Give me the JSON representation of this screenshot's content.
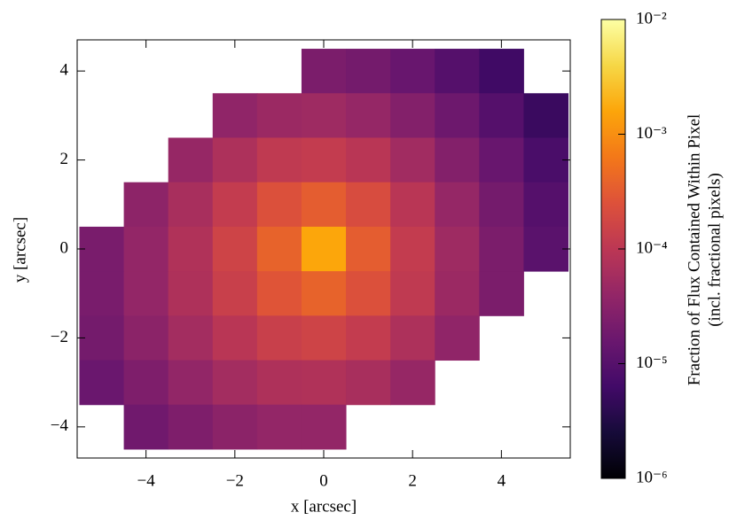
{
  "chart_data": {
    "type": "heatmap",
    "x_label": "x [arcsec]",
    "y_label": "y [arcsec]",
    "colorbar_label": [
      "Fraction of Flux Contained Within Pixel",
      "(incl. fractional pixels)"
    ],
    "colormap": "inferno",
    "zscale": "log",
    "x": [
      -5,
      -4,
      -3,
      -2,
      -1,
      0,
      1,
      2,
      3,
      4,
      5
    ],
    "y": [
      4,
      3,
      2,
      1,
      0,
      -1,
      -2,
      -3,
      -4
    ],
    "z": [
      [
        null,
        null,
        null,
        null,
        null,
        2.3e-05,
        2e-05,
        1.5e-05,
        9.7e-06,
        6e-06,
        null
      ],
      [
        null,
        null,
        null,
        3.7e-05,
        4.8e-05,
        5.1e-05,
        4.2e-05,
        2.8e-05,
        1.7e-05,
        9.7e-06,
        5.3e-06
      ],
      [
        null,
        null,
        4.3e-05,
        7.2e-05,
        0.00011,
        0.00012,
        9.3e-05,
        5.4e-05,
        2.8e-05,
        1.5e-05,
        7.6e-06
      ],
      [
        null,
        3.5e-05,
        6.4e-05,
        0.00012,
        0.00024,
        0.00033,
        0.00021,
        9.3e-05,
        4.2e-05,
        2e-05,
        9.7e-06
      ],
      [
        2.2e-05,
        4e-05,
        7.7e-05,
        0.00016,
        0.00038,
        0.0016,
        0.00033,
        0.00012,
        5.1e-05,
        2.3e-05,
        1.1e-05
      ],
      [
        2.2e-05,
        4e-05,
        7.3e-05,
        0.00014,
        0.00027,
        0.00038,
        0.00024,
        0.00011,
        4.8e-05,
        2.3e-05,
        null
      ],
      [
        2e-05,
        3.3e-05,
        5.7e-05,
        9.4e-05,
        0.00014,
        0.00016,
        0.00012,
        7.2e-05,
        3.7e-05,
        null,
        null
      ],
      [
        1.6e-05,
        2.5e-05,
        3.9e-05,
        5.7e-05,
        7.3e-05,
        7.7e-05,
        6.4e-05,
        4.3e-05,
        null,
        null,
        null
      ],
      [
        null,
        1.8e-05,
        2.5e-05,
        3.3e-05,
        4e-05,
        4e-05,
        null,
        null,
        null,
        null,
        null
      ]
    ],
    "xlim": [
      -5.55,
      5.55
    ],
    "ylim": [
      -4.7,
      4.7
    ],
    "xticks": [
      {
        "value": -4,
        "label": "−4"
      },
      {
        "value": -2,
        "label": "−2"
      },
      0,
      2,
      4
    ],
    "yticks": [
      {
        "value": -4,
        "label": "−4"
      },
      {
        "value": -2,
        "label": "−2"
      },
      0,
      2,
      4
    ],
    "zlim": [
      1e-06,
      0.01
    ],
    "zticks": [
      {
        "value": 1e-06,
        "label": "10⁻⁶"
      },
      {
        "value": 1e-05,
        "label": "10⁻⁵"
      },
      {
        "value": 0.0001,
        "label": "10⁻⁴"
      },
      {
        "value": 0.001,
        "label": "10⁻³"
      },
      {
        "value": 0.01,
        "label": "10⁻²"
      }
    ]
  }
}
